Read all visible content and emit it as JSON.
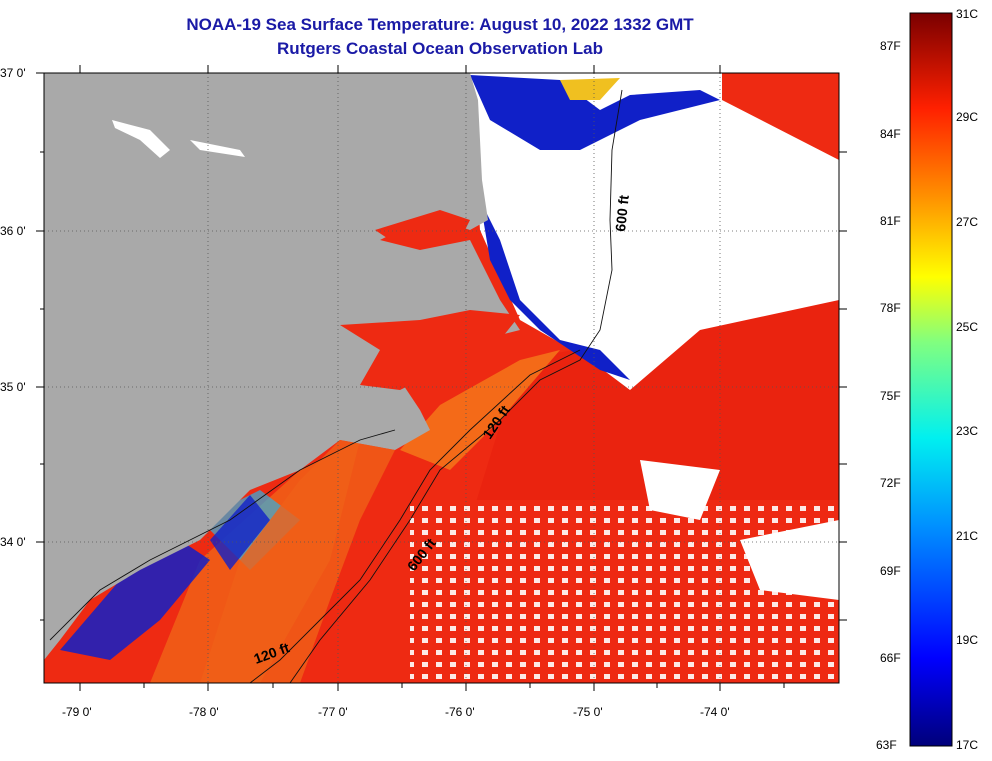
{
  "header": {
    "title": "NOAA-19 Sea Surface Temperature:  August 10, 2022 1332 GMT",
    "subtitle": "Rutgers Coastal Ocean Observation Lab"
  },
  "map": {
    "lat_ticks": [
      "37 0'",
      "36 0'",
      "35 0'",
      "34 0'"
    ],
    "lon_ticks": [
      "-79 0'",
      "-78 0'",
      "-77 0'",
      "-76 0'",
      "-75 0'",
      "-74 0'"
    ],
    "contour_labels": {
      "isobath_600_north": "600 ft",
      "isobath_120_mid": "120 ft",
      "isobath_600_south": "600 ft",
      "isobath_120_south": "120 ft"
    },
    "colors": {
      "land": "#a9a9a9",
      "cloud": "#ffffff",
      "warm_water": "#ee2a12",
      "cool_water": "#1020c8"
    }
  },
  "colorbar": {
    "fahrenheit": [
      "87F",
      "84F",
      "81F",
      "78F",
      "75F",
      "72F",
      "69F",
      "66F",
      "63F"
    ],
    "celsius": [
      "31C",
      "29C",
      "27C",
      "25C",
      "23C",
      "21C",
      "19C",
      "17C"
    ]
  }
}
